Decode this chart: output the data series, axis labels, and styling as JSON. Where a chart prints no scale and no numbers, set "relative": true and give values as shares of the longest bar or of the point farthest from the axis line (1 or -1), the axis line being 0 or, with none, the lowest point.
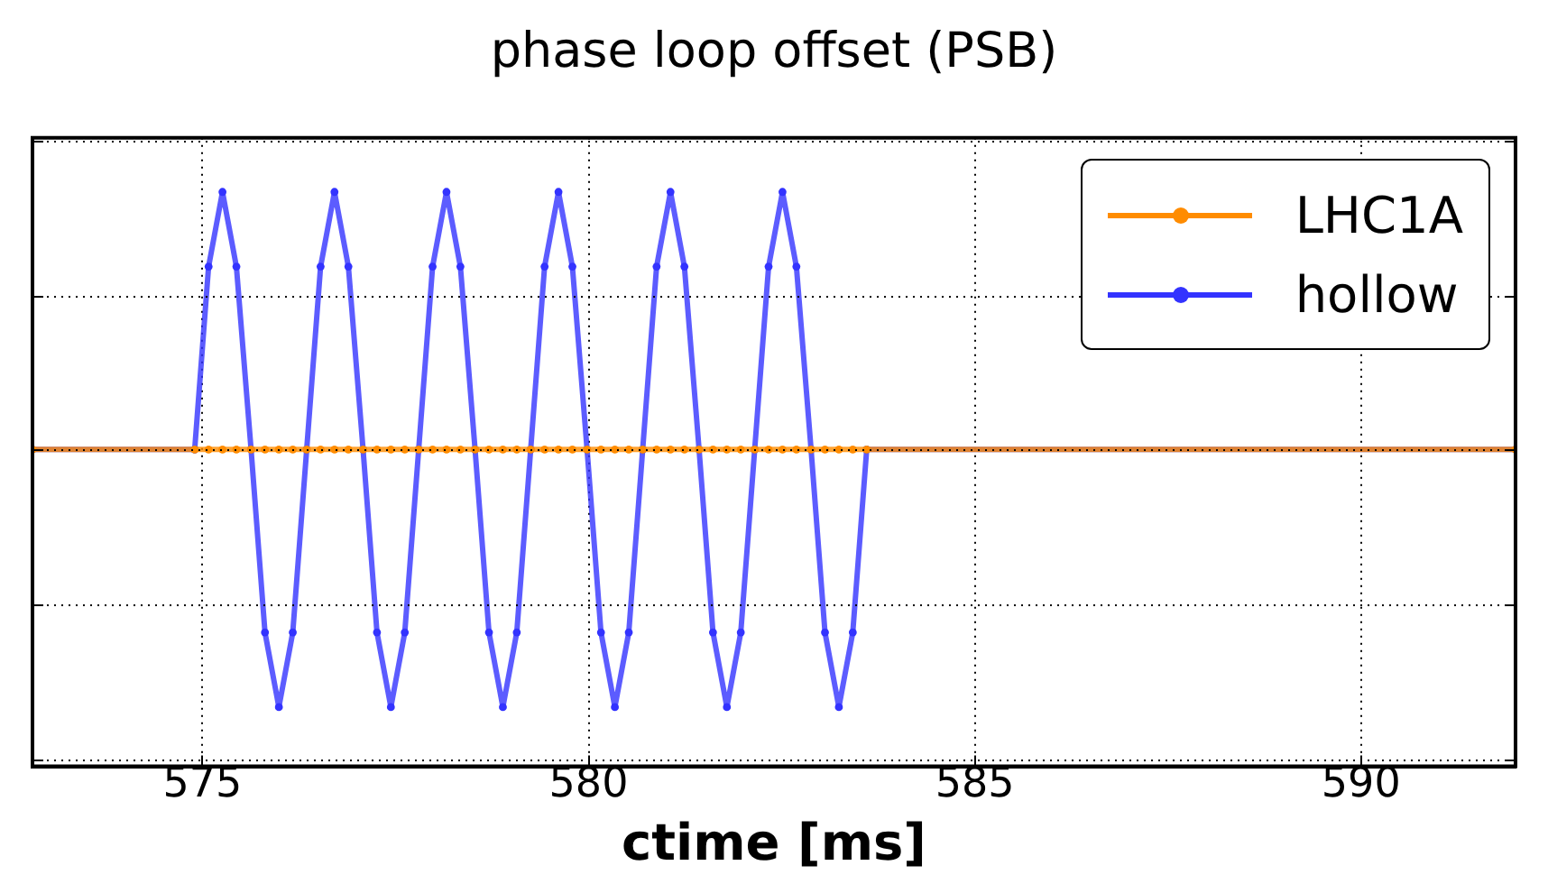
{
  "chart_data": {
    "type": "line",
    "title": "phase loop offset (PSB)",
    "xlabel": "ctime [ms]",
    "relative": true,
    "x": [
      572.8,
      574.9,
      575.08,
      575.26,
      575.44,
      575.63,
      575.81,
      575.99,
      576.17,
      576.35,
      576.53,
      576.71,
      576.89,
      577.08,
      577.26,
      577.44,
      577.62,
      577.8,
      577.98,
      578.16,
      578.34,
      578.53,
      578.71,
      578.89,
      579.07,
      579.25,
      579.43,
      579.61,
      579.79,
      579.98,
      580.16,
      580.34,
      580.52,
      580.7,
      580.88,
      581.06,
      581.24,
      581.43,
      581.61,
      581.79,
      581.97,
      582.15,
      582.33,
      582.51,
      582.69,
      582.88,
      583.06,
      583.24,
      583.42,
      583.6,
      592.0
    ],
    "xlim": [
      572.8,
      592.0
    ],
    "xticks": [
      575,
      580,
      585,
      590
    ],
    "series": [
      {
        "name": "LHC1A",
        "color": "#ff8c00",
        "values": [
          0,
          0,
          0,
          0,
          0,
          0,
          0,
          0,
          0,
          0,
          0,
          0,
          0,
          0,
          0,
          0,
          0,
          0,
          0,
          0,
          0,
          0,
          0,
          0,
          0,
          0,
          0,
          0,
          0,
          0,
          0,
          0,
          0,
          0,
          0,
          0,
          0,
          0,
          0,
          0,
          0,
          0,
          0,
          0,
          0,
          0,
          0,
          0,
          0,
          0,
          0
        ]
      },
      {
        "name": "hollow",
        "color": "#3333ff",
        "values": [
          0,
          0,
          0.71,
          1,
          0.71,
          0,
          -0.71,
          -1,
          -0.71,
          0,
          0.71,
          1,
          0.71,
          0,
          -0.71,
          -1,
          -0.71,
          0,
          0.71,
          1,
          0.71,
          0,
          -0.71,
          -1,
          -0.71,
          0,
          0.71,
          1,
          0.71,
          0,
          -0.71,
          -1,
          -0.71,
          0,
          0.71,
          1,
          0.71,
          0,
          -0.71,
          -1,
          -0.71,
          0,
          0.71,
          1,
          0.71,
          0,
          -0.71,
          -1,
          -0.71,
          0,
          0
        ]
      }
    ],
    "grid": true,
    "legend": "top right",
    "marker": "circle",
    "line_style": "solid",
    "tick_labels": "x"
  }
}
